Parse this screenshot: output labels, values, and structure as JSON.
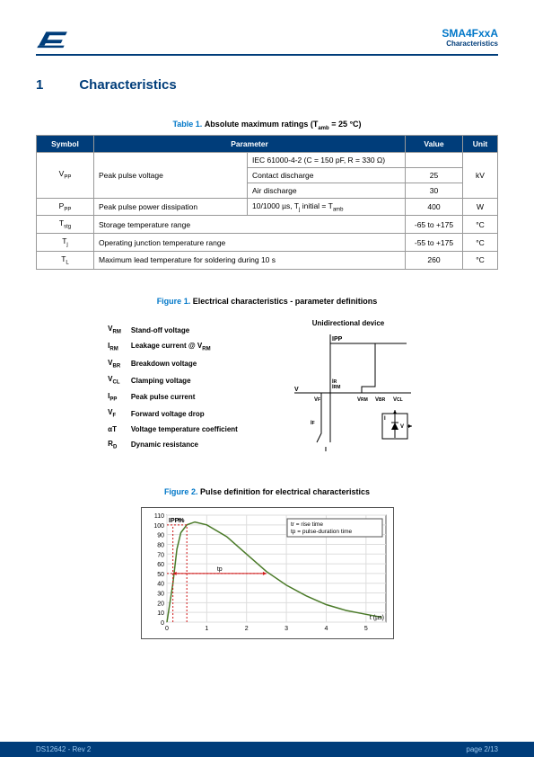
{
  "header": {
    "product": "SMA4FxxA",
    "section_label": "Characteristics",
    "logo_fill": "#003d7a"
  },
  "section": {
    "number": "1",
    "title": "Characteristics"
  },
  "table1": {
    "caption_label": "Table 1.",
    "caption_text": "Absolute maximum ratings (T",
    "caption_sub": "amb",
    "caption_suffix": " = 25 °C)",
    "headers": {
      "symbol": "Symbol",
      "parameter": "Parameter",
      "value": "Value",
      "unit": "Unit"
    },
    "rows": [
      {
        "sym_main": "V",
        "sym_sub": "PP",
        "param": "Peak pulse voltage",
        "details": [
          {
            "txt": "IEC 61000-4-2 (C = 150 pF, R = 330 Ω)",
            "val": ""
          },
          {
            "txt": "Contact discharge",
            "val": "25"
          },
          {
            "txt": "Air discharge",
            "val": "30"
          }
        ],
        "unit": "kV"
      },
      {
        "sym_main": "P",
        "sym_sub": "PP",
        "param": "Peak pulse power dissipation",
        "details": "10/1000 µs, Tj initial = Tamb",
        "val": "400",
        "unit": "W"
      },
      {
        "sym_main": "T",
        "sym_sub": "stg",
        "param": "Storage temperature range",
        "details": "",
        "val": "-65 to +175",
        "unit": "°C"
      },
      {
        "sym_main": "T",
        "sym_sub": "j",
        "param": "Operating junction temperature range",
        "details": "",
        "val": "-55 to +175",
        "unit": "°C"
      },
      {
        "sym_main": "T",
        "sym_sub": "L",
        "param": "Maximum lead temperature for soldering during 10 s",
        "details": "",
        "val": "260",
        "unit": "°C"
      }
    ]
  },
  "figure1": {
    "caption_label": "Figure 1.",
    "caption_text": "Electrical characteristics - parameter definitions",
    "diagram_title": "Unidirectional device",
    "defs": [
      {
        "s": "V",
        "sub": "RM",
        "t": "Stand-off voltage"
      },
      {
        "s": "I",
        "sub": "RM",
        "t": "Leakage current @ V",
        "t_sub": "RM"
      },
      {
        "s": "V",
        "sub": "BR",
        "t": "Breakdown voltage"
      },
      {
        "s": "V",
        "sub": "CL",
        "t": "Clamping voltage"
      },
      {
        "s": "I",
        "sub": "PP",
        "t": "Peak pulse current"
      },
      {
        "s": "V",
        "sub": "F",
        "t": "Forward voltage drop"
      },
      {
        "s": "αT",
        "sub": "",
        "t": "Voltage temperature coefficient"
      },
      {
        "s": "R",
        "sub": "D",
        "t": "Dynamic resistance"
      }
    ],
    "labels": {
      "ipp": "IPP",
      "ir": "IR",
      "irm": "IRM",
      "v": "V",
      "vf": "VF",
      "vrm": "VRM",
      "vbr": "VBR",
      "vcl": "VCL",
      "if": "IF",
      "i_plus": "I",
      "v_plus": "V",
      "i_ax": "I"
    }
  },
  "figure2": {
    "caption_label": "Figure 2.",
    "caption_text": "Pulse definition for electrical characteristics",
    "chart": {
      "type": "line",
      "xlim": [
        0,
        5.5
      ],
      "ylim": [
        0,
        110
      ],
      "ytick_step": 10,
      "x_label": "t (µs)",
      "y_label": "IPP%",
      "line_color": "#4a7a28",
      "ref_color": "#d01717",
      "bg": "#ffffff",
      "grid": "#dddddd",
      "legend": [
        "tr = rise time",
        "tp = pulse-duration time"
      ],
      "tr_label": "tr",
      "tp_label": "tp",
      "points": [
        [
          0,
          0
        ],
        [
          0.15,
          40
        ],
        [
          0.25,
          75
        ],
        [
          0.35,
          92
        ],
        [
          0.5,
          100
        ],
        [
          0.7,
          103
        ],
        [
          1.0,
          100
        ],
        [
          1.5,
          88
        ],
        [
          2.0,
          70
        ],
        [
          2.5,
          52
        ],
        [
          3.0,
          38
        ],
        [
          3.5,
          27
        ],
        [
          4.0,
          18
        ],
        [
          4.5,
          12
        ],
        [
          5.0,
          8
        ],
        [
          5.4,
          5
        ]
      ]
    }
  },
  "footer": {
    "doc": "DS12642 - Rev 2",
    "page": "page 2/13"
  }
}
